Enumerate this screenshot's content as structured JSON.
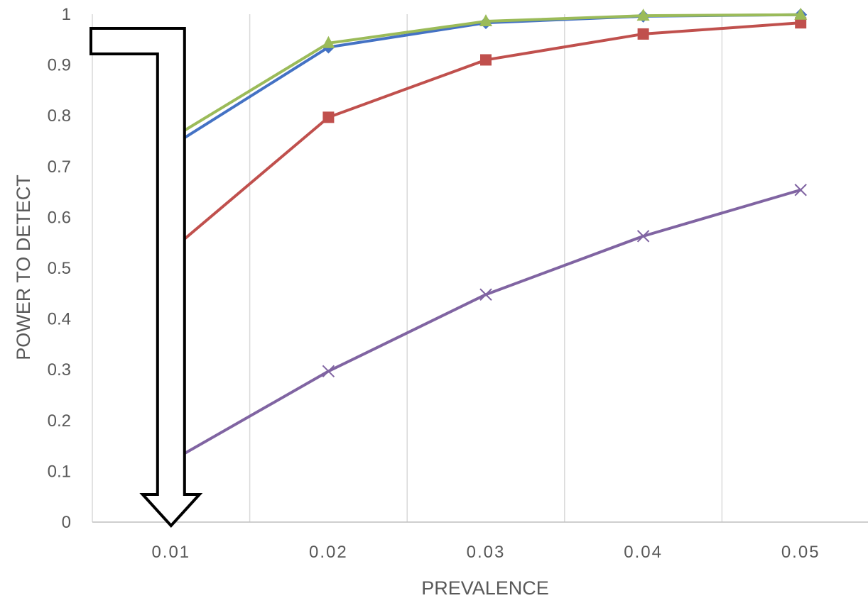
{
  "chart_data": {
    "type": "line",
    "xlabel": "PREVALENCE",
    "ylabel": "POWER TO DETECT",
    "categories": [
      "0.01",
      "0.02",
      "0.03",
      "0.04",
      "0.05"
    ],
    "ylim": [
      0,
      1
    ],
    "yticks": [
      "0",
      "0.1",
      "0.2",
      "0.3",
      "0.4",
      "0.5",
      "0.6",
      "0.7",
      "0.8",
      "0.9",
      "1"
    ],
    "grid": "vertical",
    "legend": "none",
    "series": [
      {
        "color": "#4472c4",
        "marker": "diamond",
        "values": [
          0.74,
          0.935,
          0.983,
          0.996,
          0.999
        ]
      },
      {
        "color": "#c0504d",
        "marker": "square",
        "values": [
          0.535,
          0.797,
          0.91,
          0.961,
          0.983
        ]
      },
      {
        "color": "#9bbb59",
        "marker": "triangle",
        "values": [
          0.755,
          0.943,
          0.986,
          0.997,
          0.999
        ]
      },
      {
        "color": "#8064a2",
        "marker": "x",
        "values": [
          0.12,
          0.297,
          0.448,
          0.563,
          0.654
        ]
      }
    ],
    "annotation": {
      "shape": "arrow",
      "target_category": "0.01",
      "stroke": "#000000"
    }
  }
}
